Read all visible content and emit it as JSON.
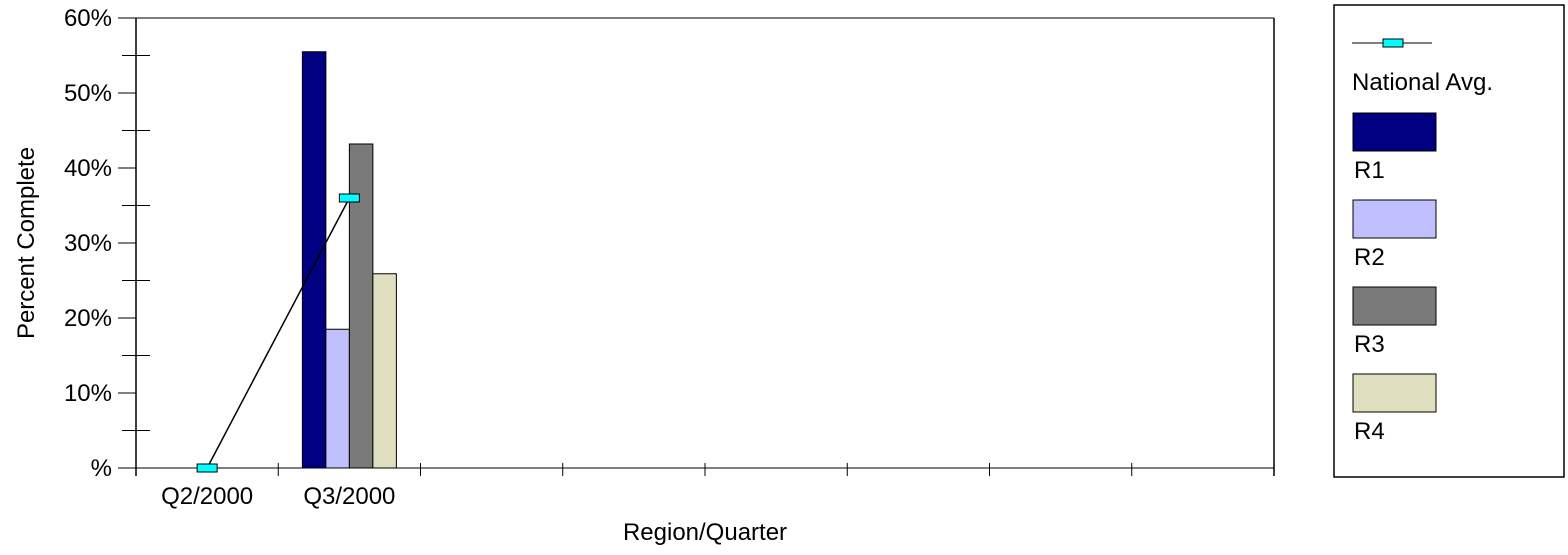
{
  "chart_data": {
    "type": "bar",
    "categories": [
      "Q2/2000",
      "Q3/2000",
      "",
      "",
      "",
      "",
      "",
      ""
    ],
    "series": [
      {
        "name": "R1",
        "type": "bar",
        "color": "#000080",
        "values": [
          null,
          55.5,
          null,
          null,
          null,
          null,
          null,
          null
        ]
      },
      {
        "name": "R2",
        "type": "bar",
        "color": "#c0c0ff",
        "values": [
          null,
          18.5,
          null,
          null,
          null,
          null,
          null,
          null
        ]
      },
      {
        "name": "R3",
        "type": "bar",
        "color": "#7a7a7a",
        "values": [
          null,
          43.2,
          null,
          null,
          null,
          null,
          null,
          null
        ]
      },
      {
        "name": "R4",
        "type": "bar",
        "color": "#e0dfc0",
        "values": [
          null,
          25.9,
          null,
          null,
          null,
          null,
          null,
          null
        ]
      },
      {
        "name": "National Avg.",
        "type": "line",
        "color": "#00ffff",
        "values": [
          0,
          36,
          null,
          null,
          null,
          null,
          null,
          null
        ]
      }
    ],
    "title": "",
    "xlabel": "Region/Quarter",
    "ylabel": "Percent Complete",
    "ylim": [
      0,
      60
    ],
    "yticks": [
      {
        "value": 0,
        "label": "%"
      },
      {
        "value": 10,
        "label": "10%"
      },
      {
        "value": 20,
        "label": "20%"
      },
      {
        "value": 30,
        "label": "30%"
      },
      {
        "value": 40,
        "label": "40%"
      },
      {
        "value": 50,
        "label": "50%"
      },
      {
        "value": 60,
        "label": "60%"
      }
    ],
    "grid": false,
    "legend_position": "right"
  },
  "legend": {
    "items": [
      {
        "label": "National Avg.",
        "kind": "line",
        "color": "#00ffff"
      },
      {
        "label": "R1",
        "kind": "bar",
        "color": "#000080"
      },
      {
        "label": "R2",
        "kind": "bar",
        "color": "#c0c0ff"
      },
      {
        "label": "R3",
        "kind": "bar",
        "color": "#7a7a7a"
      },
      {
        "label": "R4",
        "kind": "bar",
        "color": "#e0dfc0"
      }
    ]
  }
}
